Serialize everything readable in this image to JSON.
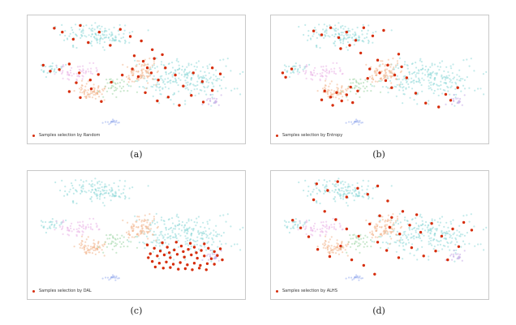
{
  "chart_data": [
    {
      "type": "scatter",
      "caption": "(a)",
      "legend": "Samples selection by Random",
      "colors": {
        "selected": "#d62d0b"
      },
      "background_classes": [
        "teal",
        "orange",
        "pink",
        "green",
        "blue",
        "purple"
      ],
      "selected_points": [
        [
          -0.82,
          0.86
        ],
        [
          -0.74,
          0.79
        ],
        [
          -0.63,
          0.66
        ],
        [
          -0.56,
          0.91
        ],
        [
          -0.48,
          0.6
        ],
        [
          -0.37,
          0.79
        ],
        [
          -0.26,
          0.55
        ],
        [
          -0.16,
          0.84
        ],
        [
          -0.06,
          0.71
        ],
        [
          0.05,
          0.63
        ],
        [
          0.16,
          0.47
        ],
        [
          -0.93,
          0.19
        ],
        [
          -0.86,
          0.08
        ],
        [
          -0.77,
          0.11
        ],
        [
          -0.67,
          0.21
        ],
        [
          -0.57,
          0.05
        ],
        [
          -0.46,
          -0.08
        ],
        [
          -0.38,
          0.02
        ],
        [
          -0.25,
          -0.12
        ],
        [
          -0.14,
          0.01
        ],
        [
          -0.04,
          0.12
        ],
        [
          0.07,
          0.26
        ],
        [
          0.15,
          0.05
        ],
        [
          0.22,
          -0.08
        ],
        [
          0.29,
          0.14
        ],
        [
          0.39,
          0.01
        ],
        [
          0.47,
          -0.19
        ],
        [
          0.57,
          0.05
        ],
        [
          0.66,
          -0.11
        ],
        [
          0.76,
          0.14
        ],
        [
          0.84,
          0.03
        ],
        [
          -0.67,
          -0.29
        ],
        [
          -0.56,
          -0.4
        ],
        [
          -0.45,
          -0.24
        ],
        [
          -0.35,
          -0.47
        ],
        [
          0.09,
          -0.31
        ],
        [
          0.21,
          -0.46
        ],
        [
          0.32,
          -0.39
        ],
        [
          0.43,
          -0.54
        ],
        [
          0.55,
          -0.36
        ],
        [
          0.67,
          -0.48
        ],
        [
          0.76,
          -0.27
        ],
        [
          -0.02,
          0.36
        ],
        [
          0.02,
          -0.02
        ],
        [
          0.11,
          0.14
        ],
        [
          0.18,
          0.31
        ],
        [
          -0.6,
          -0.13
        ],
        [
          0.26,
          0.38
        ]
      ]
    },
    {
      "type": "scatter",
      "caption": "(b)",
      "legend": "Samples selection by Entropy",
      "colors": {
        "selected": "#d62d0b"
      },
      "background_classes": [
        "teal",
        "orange",
        "pink",
        "green",
        "blue",
        "purple"
      ],
      "selected_points": [
        [
          -0.97,
          0.05
        ],
        [
          -0.94,
          -0.03
        ],
        [
          -0.88,
          0.12
        ],
        [
          -0.66,
          0.81
        ],
        [
          -0.58,
          0.74
        ],
        [
          -0.49,
          0.87
        ],
        [
          -0.41,
          0.69
        ],
        [
          -0.33,
          0.79
        ],
        [
          -0.24,
          0.64
        ],
        [
          -0.16,
          0.87
        ],
        [
          -0.07,
          0.72
        ],
        [
          0.04,
          0.82
        ],
        [
          -0.39,
          0.49
        ],
        [
          -0.3,
          0.55
        ],
        [
          -0.19,
          0.41
        ],
        [
          -0.1,
          0.12
        ],
        [
          0.0,
          0.05
        ],
        [
          0.08,
          0.19
        ],
        [
          0.15,
          0.01
        ],
        [
          0.22,
          0.16
        ],
        [
          0.27,
          -0.04
        ],
        [
          0.06,
          -0.09
        ],
        [
          -0.02,
          0.28
        ],
        [
          -0.55,
          -0.28
        ],
        [
          -0.49,
          -0.39
        ],
        [
          -0.43,
          -0.31
        ],
        [
          -0.38,
          -0.46
        ],
        [
          -0.33,
          -0.35
        ],
        [
          -0.27,
          -0.49
        ],
        [
          -0.58,
          -0.44
        ],
        [
          -0.47,
          -0.54
        ],
        [
          -0.22,
          -0.28
        ],
        [
          -0.29,
          -0.21
        ],
        [
          0.36,
          -0.32
        ],
        [
          0.46,
          -0.5
        ],
        [
          0.59,
          -0.57
        ],
        [
          0.71,
          -0.45
        ],
        [
          0.66,
          -0.34
        ],
        [
          0.78,
          -0.22
        ],
        [
          0.12,
          -0.22
        ],
        [
          -0.12,
          -0.05
        ],
        [
          0.19,
          0.39
        ]
      ]
    },
    {
      "type": "scatter",
      "caption": "(c)",
      "legend": "Samples selection by DAL",
      "colors": {
        "selected": "#d62d0b"
      },
      "background_classes": [
        "teal",
        "orange",
        "pink",
        "green",
        "blue",
        "purple"
      ],
      "selected_points": [
        [
          0.11,
          -0.25
        ],
        [
          0.18,
          -0.31
        ],
        [
          0.24,
          -0.36
        ],
        [
          0.31,
          -0.29
        ],
        [
          0.38,
          -0.34
        ],
        [
          0.45,
          -0.27
        ],
        [
          0.52,
          -0.33
        ],
        [
          0.58,
          -0.29
        ],
        [
          0.65,
          -0.35
        ],
        [
          0.72,
          -0.31
        ],
        [
          0.78,
          -0.37
        ],
        [
          0.14,
          -0.41
        ],
        [
          0.21,
          -0.45
        ],
        [
          0.28,
          -0.43
        ],
        [
          0.34,
          -0.48
        ],
        [
          0.41,
          -0.42
        ],
        [
          0.48,
          -0.47
        ],
        [
          0.55,
          -0.43
        ],
        [
          0.61,
          -0.49
        ],
        [
          0.68,
          -0.45
        ],
        [
          0.75,
          -0.5
        ],
        [
          0.81,
          -0.44
        ],
        [
          0.16,
          -0.55
        ],
        [
          0.23,
          -0.58
        ],
        [
          0.3,
          -0.56
        ],
        [
          0.37,
          -0.6
        ],
        [
          0.44,
          -0.57
        ],
        [
          0.51,
          -0.61
        ],
        [
          0.58,
          -0.58
        ],
        [
          0.64,
          -0.62
        ],
        [
          0.71,
          -0.59
        ],
        [
          0.78,
          -0.6
        ],
        [
          0.19,
          -0.65
        ],
        [
          0.27,
          -0.67
        ],
        [
          0.34,
          -0.66
        ],
        [
          0.42,
          -0.69
        ],
        [
          0.49,
          -0.68
        ],
        [
          0.56,
          -0.7
        ],
        [
          0.63,
          -0.67
        ],
        [
          0.7,
          -0.7
        ],
        [
          0.26,
          -0.21
        ],
        [
          0.4,
          -0.2
        ],
        [
          0.54,
          -0.22
        ],
        [
          0.68,
          -0.23
        ],
        [
          0.84,
          -0.32
        ],
        [
          0.86,
          -0.52
        ],
        [
          0.12,
          -0.48
        ],
        [
          0.47,
          -0.37
        ],
        [
          0.33,
          -0.39
        ],
        [
          0.6,
          -0.39
        ]
      ]
    },
    {
      "type": "scatter",
      "caption": "(d)",
      "legend": "Samples selection by ALHS",
      "colors": {
        "selected": "#d62d0b"
      },
      "background_classes": [
        "teal",
        "orange",
        "pink",
        "green",
        "blue",
        "purple"
      ],
      "selected_points": [
        [
          -0.87,
          0.2
        ],
        [
          -0.79,
          0.06
        ],
        [
          -0.71,
          -0.1
        ],
        [
          -0.63,
          0.86
        ],
        [
          -0.52,
          0.74
        ],
        [
          -0.42,
          0.9
        ],
        [
          -0.33,
          0.62
        ],
        [
          -0.22,
          0.78
        ],
        [
          -0.12,
          0.67
        ],
        [
          -0.02,
          0.82
        ],
        [
          0.08,
          0.55
        ],
        [
          -0.55,
          0.36
        ],
        [
          -0.44,
          0.21
        ],
        [
          -0.33,
          0.04
        ],
        [
          -0.21,
          -0.09
        ],
        [
          -0.1,
          0.13
        ],
        [
          0.0,
          0.28
        ],
        [
          0.1,
          0.07
        ],
        [
          0.2,
          -0.05
        ],
        [
          0.3,
          0.11
        ],
        [
          0.41,
          -0.02
        ],
        [
          0.52,
          0.14
        ],
        [
          0.62,
          -0.09
        ],
        [
          0.73,
          0.04
        ],
        [
          0.84,
          0.16
        ],
        [
          0.92,
          0.02
        ],
        [
          -0.62,
          -0.33
        ],
        [
          -0.5,
          -0.46
        ],
        [
          -0.39,
          -0.27
        ],
        [
          -0.28,
          -0.52
        ],
        [
          -0.16,
          -0.62
        ],
        [
          -0.05,
          -0.78
        ],
        [
          0.07,
          -0.35
        ],
        [
          0.19,
          -0.48
        ],
        [
          0.32,
          -0.3
        ],
        [
          0.44,
          -0.45
        ],
        [
          0.56,
          -0.36
        ],
        [
          0.68,
          -0.52
        ],
        [
          0.79,
          -0.28
        ],
        [
          0.23,
          0.36
        ],
        [
          -0.02,
          -0.2
        ],
        [
          0.37,
          0.3
        ],
        [
          0.12,
          0.25
        ],
        [
          -0.66,
          0.57
        ]
      ]
    }
  ]
}
